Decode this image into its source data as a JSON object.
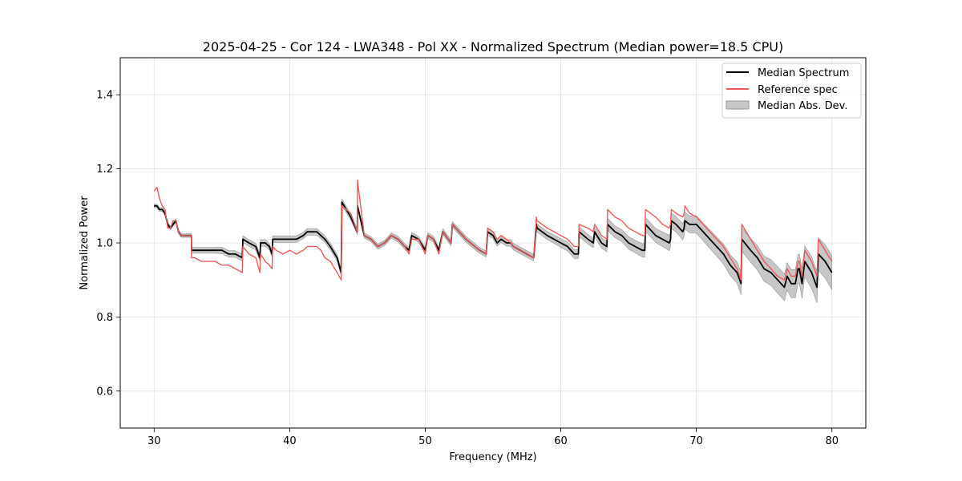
{
  "chart_data": {
    "type": "line",
    "title": "2025-04-25 - Cor 124 - LWA348 - Pol XX - Normalized Spectrum (Median power=18.5 CPU)",
    "xlabel": "Frequency (MHz)",
    "ylabel": "Normalized Power",
    "xlim": [
      27.5,
      82.5
    ],
    "ylim": [
      0.5,
      1.5
    ],
    "xticks": [
      30,
      40,
      50,
      60,
      70,
      80
    ],
    "yticks": [
      0.6,
      0.8,
      1.0,
      1.2,
      1.4
    ],
    "xtick_labels": [
      "30",
      "40",
      "50",
      "60",
      "70",
      "80"
    ],
    "ytick_labels": [
      "0.6",
      "0.8",
      "1.0",
      "1.2",
      "1.4"
    ],
    "grid": true,
    "legend_position": "top-right",
    "colors": {
      "median": "#000000",
      "reference": "#f05a5a",
      "mad": "#b4b4b4"
    },
    "series": [
      {
        "name": "Median Spectrum",
        "kind": "line",
        "x": [
          30.0,
          30.2,
          30.4,
          30.6,
          30.8,
          31.0,
          31.2,
          31.4,
          31.6,
          31.8,
          32.0,
          32.2,
          32.5,
          32.75,
          32.76,
          33.0,
          33.5,
          34.0,
          34.5,
          35.0,
          35.5,
          36.0,
          36.5,
          36.55,
          37.0,
          37.5,
          37.8,
          37.85,
          38.2,
          38.5,
          38.7,
          38.75,
          39.0,
          39.5,
          40.0,
          40.5,
          41.0,
          41.3,
          41.6,
          42.0,
          42.3,
          42.6,
          43.0,
          43.5,
          43.8,
          43.85,
          44.5,
          44.99,
          45.0,
          45.5,
          46.0,
          46.5,
          47.0,
          47.5,
          48.0,
          48.5,
          48.8,
          49.0,
          49.5,
          50.0,
          50.2,
          50.6,
          51.0,
          51.3,
          51.5,
          51.9,
          52.0,
          53.0,
          54.0,
          54.5,
          54.6,
          55.0,
          55.3,
          55.6,
          56.0,
          56.3,
          56.5,
          57.0,
          57.5,
          58.0,
          58.2,
          58.25,
          59.0,
          59.5,
          60.0,
          60.5,
          61.0,
          61.3,
          61.35,
          62.0,
          62.4,
          62.5,
          63.0,
          63.4,
          63.45,
          64.0,
          64.5,
          65.0,
          65.5,
          66.0,
          66.2,
          66.25,
          67.0,
          67.5,
          68.0,
          68.1,
          68.15,
          68.5,
          69.0,
          69.1,
          69.15,
          69.5,
          70.0,
          70.5,
          71.0,
          71.5,
          72.0,
          72.5,
          73.0,
          73.3,
          73.35,
          74.0,
          74.5,
          75.0,
          75.5,
          76.0,
          76.5,
          76.7,
          77.0,
          77.3,
          77.5,
          77.6,
          77.8,
          78.0,
          78.5,
          78.9,
          79.0,
          79.5,
          80.0
        ],
        "y": [
          1.1,
          1.1,
          1.09,
          1.09,
          1.08,
          1.05,
          1.04,
          1.05,
          1.06,
          1.03,
          1.02,
          1.02,
          1.02,
          1.02,
          0.98,
          0.98,
          0.98,
          0.98,
          0.98,
          0.98,
          0.97,
          0.97,
          0.96,
          1.01,
          1.0,
          0.99,
          0.96,
          1.0,
          1.0,
          0.99,
          0.97,
          1.01,
          1.01,
          1.01,
          1.01,
          1.01,
          1.02,
          1.03,
          1.03,
          1.03,
          1.02,
          1.01,
          0.99,
          0.96,
          0.92,
          1.11,
          1.07,
          1.03,
          1.1,
          1.02,
          1.01,
          0.99,
          1.0,
          1.02,
          1.01,
          0.99,
          0.98,
          1.02,
          1.01,
          0.98,
          1.02,
          1.01,
          0.98,
          1.03,
          1.02,
          1.0,
          1.05,
          1.01,
          0.98,
          0.97,
          1.03,
          1.02,
          1.0,
          1.01,
          1.0,
          1.0,
          0.99,
          0.98,
          0.97,
          0.96,
          1.05,
          1.04,
          1.02,
          1.01,
          1.0,
          0.99,
          0.97,
          0.97,
          1.03,
          1.01,
          1.0,
          1.03,
          1.0,
          0.99,
          1.05,
          1.03,
          1.02,
          1.0,
          0.99,
          0.98,
          0.98,
          1.05,
          1.02,
          1.01,
          1.0,
          1.01,
          1.06,
          1.05,
          1.03,
          1.04,
          1.06,
          1.05,
          1.05,
          1.03,
          1.01,
          0.99,
          0.97,
          0.94,
          0.92,
          0.89,
          1.01,
          0.98,
          0.96,
          0.93,
          0.92,
          0.9,
          0.88,
          0.91,
          0.89,
          0.89,
          0.93,
          0.93,
          0.89,
          0.95,
          0.92,
          0.88,
          0.97,
          0.95,
          0.92
        ]
      },
      {
        "name": "Reference spec",
        "kind": "line",
        "x": [
          30.0,
          30.2,
          30.4,
          30.6,
          30.8,
          31.0,
          31.2,
          31.4,
          31.6,
          31.8,
          32.0,
          32.2,
          32.5,
          32.75,
          32.76,
          33.0,
          33.5,
          34.0,
          34.5,
          35.0,
          35.5,
          36.0,
          36.5,
          36.55,
          37.0,
          37.5,
          37.8,
          37.85,
          38.2,
          38.5,
          38.7,
          38.75,
          39.0,
          39.5,
          40.0,
          40.5,
          41.0,
          41.3,
          41.6,
          42.0,
          42.3,
          42.6,
          43.0,
          43.5,
          43.8,
          43.85,
          44.5,
          44.99,
          45.0,
          45.5,
          46.0,
          46.5,
          47.0,
          47.5,
          48.0,
          48.5,
          48.8,
          49.0,
          49.5,
          50.0,
          50.2,
          50.6,
          51.0,
          51.3,
          51.5,
          51.9,
          52.0,
          53.0,
          54.0,
          54.5,
          54.6,
          55.0,
          55.3,
          55.6,
          56.0,
          56.3,
          56.5,
          57.0,
          57.5,
          58.0,
          58.2,
          58.25,
          59.0,
          59.5,
          60.0,
          60.5,
          61.0,
          61.3,
          61.35,
          62.0,
          62.4,
          62.5,
          63.0,
          63.4,
          63.45,
          64.0,
          64.5,
          65.0,
          65.5,
          66.0,
          66.2,
          66.25,
          67.0,
          67.5,
          68.0,
          68.1,
          68.15,
          68.5,
          69.0,
          69.1,
          69.15,
          69.5,
          70.0,
          70.5,
          71.0,
          71.5,
          72.0,
          72.5,
          73.0,
          73.3,
          73.35,
          74.0,
          74.5,
          75.0,
          75.5,
          76.0,
          76.5,
          76.7,
          77.0,
          77.3,
          77.5,
          77.6,
          77.8,
          78.0,
          78.5,
          78.9,
          79.0,
          79.5,
          80.0
        ],
        "y": [
          1.14,
          1.15,
          1.12,
          1.1,
          1.09,
          1.04,
          1.04,
          1.06,
          1.06,
          1.03,
          1.02,
          1.02,
          1.02,
          1.02,
          0.96,
          0.96,
          0.95,
          0.95,
          0.95,
          0.94,
          0.94,
          0.93,
          0.92,
          0.99,
          0.97,
          0.96,
          0.92,
          0.97,
          0.95,
          0.94,
          0.93,
          0.99,
          0.98,
          0.97,
          0.98,
          0.97,
          0.98,
          0.99,
          0.99,
          0.99,
          0.98,
          0.96,
          0.95,
          0.92,
          0.9,
          1.1,
          1.08,
          1.03,
          1.17,
          1.02,
          1.01,
          0.99,
          1.0,
          1.02,
          1.01,
          0.99,
          0.97,
          1.01,
          1.01,
          0.97,
          1.02,
          1.01,
          0.97,
          1.03,
          1.02,
          1.0,
          1.05,
          1.01,
          0.98,
          0.97,
          1.04,
          1.03,
          1.01,
          1.02,
          1.01,
          1.0,
          0.99,
          0.98,
          0.97,
          0.96,
          1.07,
          1.06,
          1.04,
          1.03,
          1.02,
          1.01,
          0.99,
          0.99,
          1.05,
          1.04,
          1.03,
          1.05,
          1.02,
          1.01,
          1.09,
          1.07,
          1.06,
          1.04,
          1.03,
          1.02,
          1.02,
          1.09,
          1.07,
          1.05,
          1.04,
          1.05,
          1.09,
          1.08,
          1.07,
          1.08,
          1.1,
          1.08,
          1.07,
          1.05,
          1.03,
          1.01,
          0.99,
          0.96,
          0.93,
          0.9,
          1.05,
          1.01,
          0.98,
          0.95,
          0.93,
          0.91,
          0.9,
          0.93,
          0.91,
          0.91,
          0.95,
          0.95,
          0.91,
          0.98,
          0.95,
          0.91,
          1.01,
          0.98,
          0.95
        ]
      },
      {
        "name": "Median Abs. Dev.",
        "kind": "band",
        "x": [
          30.0,
          30.2,
          30.4,
          30.6,
          30.8,
          31.0,
          31.2,
          31.4,
          31.6,
          31.8,
          32.0,
          32.2,
          32.5,
          32.75,
          32.76,
          33.0,
          33.5,
          34.0,
          34.5,
          35.0,
          35.5,
          36.0,
          36.5,
          36.55,
          37.0,
          37.5,
          37.8,
          37.85,
          38.2,
          38.5,
          38.7,
          38.75,
          39.0,
          39.5,
          40.0,
          40.5,
          41.0,
          41.3,
          41.6,
          42.0,
          42.3,
          42.6,
          43.0,
          43.5,
          43.8,
          43.85,
          44.5,
          44.99,
          45.0,
          45.5,
          46.0,
          46.5,
          47.0,
          47.5,
          48.0,
          48.5,
          48.8,
          49.0,
          49.5,
          50.0,
          50.2,
          50.6,
          51.0,
          51.3,
          51.5,
          51.9,
          52.0,
          53.0,
          54.0,
          54.5,
          54.6,
          55.0,
          55.3,
          55.6,
          56.0,
          56.3,
          56.5,
          57.0,
          57.5,
          58.0,
          58.2,
          58.25,
          59.0,
          59.5,
          60.0,
          60.5,
          61.0,
          61.3,
          61.35,
          62.0,
          62.4,
          62.5,
          63.0,
          63.4,
          63.45,
          64.0,
          64.5,
          65.0,
          65.5,
          66.0,
          66.2,
          66.25,
          67.0,
          67.5,
          68.0,
          68.1,
          68.15,
          68.5,
          69.0,
          69.1,
          69.15,
          69.5,
          70.0,
          70.5,
          71.0,
          71.5,
          72.0,
          72.5,
          73.0,
          73.3,
          73.35,
          74.0,
          74.5,
          75.0,
          75.5,
          76.0,
          76.5,
          76.7,
          77.0,
          77.3,
          77.5,
          77.6,
          77.8,
          78.0,
          78.5,
          78.9,
          79.0,
          79.5,
          80.0
        ],
        "lower": [
          1.095,
          1.095,
          1.085,
          1.085,
          1.075,
          1.045,
          1.035,
          1.045,
          1.055,
          1.025,
          1.015,
          1.015,
          1.015,
          1.015,
          0.972,
          0.972,
          0.972,
          0.972,
          0.972,
          0.971,
          0.961,
          0.961,
          0.951,
          1.001,
          0.991,
          0.981,
          0.951,
          0.991,
          0.991,
          0.981,
          0.961,
          1.001,
          1.001,
          1.001,
          1.001,
          1.001,
          1.011,
          1.021,
          1.021,
          1.021,
          1.011,
          1.001,
          0.981,
          0.951,
          0.911,
          1.101,
          1.062,
          1.022,
          1.092,
          1.013,
          1.003,
          0.983,
          0.993,
          1.013,
          1.002,
          0.982,
          0.972,
          1.012,
          1.002,
          0.972,
          1.012,
          1.002,
          0.972,
          1.022,
          1.012,
          0.992,
          1.042,
          1.002,
          0.972,
          0.962,
          1.021,
          1.011,
          0.991,
          1.001,
          0.991,
          0.991,
          0.981,
          0.971,
          0.961,
          0.951,
          1.039,
          1.029,
          1.009,
          0.999,
          0.988,
          0.978,
          0.958,
          0.958,
          1.017,
          0.997,
          0.987,
          1.017,
          0.986,
          0.976,
          1.034,
          1.014,
          1.004,
          0.983,
          0.973,
          0.962,
          0.962,
          1.031,
          1.001,
          0.99,
          0.979,
          0.989,
          1.039,
          1.029,
          1.008,
          1.018,
          1.037,
          1.027,
          1.026,
          1.006,
          0.985,
          0.964,
          0.943,
          0.912,
          0.891,
          0.86,
          0.978,
          0.948,
          0.927,
          0.896,
          0.885,
          0.864,
          0.844,
          0.873,
          0.852,
          0.852,
          0.891,
          0.89,
          0.85,
          0.908,
          0.877,
          0.838,
          0.926,
          0.905,
          0.874
        ],
        "upper": [
          1.105,
          1.105,
          1.095,
          1.095,
          1.085,
          1.055,
          1.045,
          1.055,
          1.065,
          1.035,
          1.025,
          1.025,
          1.025,
          1.025,
          0.988,
          0.988,
          0.988,
          0.988,
          0.988,
          0.989,
          0.979,
          0.979,
          0.969,
          1.019,
          1.009,
          0.999,
          0.969,
          1.009,
          1.009,
          0.999,
          0.979,
          1.019,
          1.019,
          1.019,
          1.019,
          1.019,
          1.029,
          1.039,
          1.039,
          1.039,
          1.029,
          1.019,
          0.999,
          0.969,
          0.929,
          1.119,
          1.078,
          1.038,
          1.108,
          1.027,
          1.017,
          0.997,
          1.007,
          1.027,
          1.018,
          0.998,
          0.988,
          1.028,
          1.018,
          0.988,
          1.028,
          1.018,
          0.988,
          1.038,
          1.028,
          1.008,
          1.058,
          1.018,
          0.988,
          0.978,
          1.039,
          1.029,
          1.009,
          1.019,
          1.009,
          1.009,
          0.999,
          0.989,
          0.979,
          0.969,
          1.061,
          1.051,
          1.031,
          1.021,
          1.012,
          1.002,
          0.982,
          0.982,
          1.043,
          1.023,
          1.013,
          1.043,
          1.014,
          1.004,
          1.066,
          1.046,
          1.036,
          1.017,
          1.007,
          0.998,
          0.998,
          1.069,
          1.039,
          1.03,
          1.021,
          1.031,
          1.081,
          1.071,
          1.052,
          1.062,
          1.083,
          1.073,
          1.074,
          1.054,
          1.035,
          1.016,
          0.997,
          0.968,
          0.949,
          0.92,
          1.042,
          1.012,
          0.993,
          0.964,
          0.955,
          0.936,
          0.916,
          0.947,
          0.928,
          0.928,
          0.969,
          0.97,
          0.93,
          0.992,
          0.963,
          0.922,
          1.014,
          0.995,
          0.966
        ]
      }
    ]
  }
}
